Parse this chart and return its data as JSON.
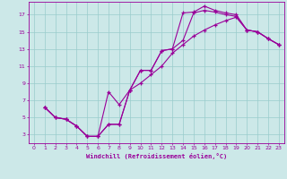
{
  "xlabel": "Windchill (Refroidissement éolien,°C)",
  "bg_color": "#cce8e8",
  "line_color": "#990099",
  "grid_color": "#99cccc",
  "xlim": [
    -0.5,
    23.5
  ],
  "ylim": [
    2.0,
    18.5
  ],
  "xticks": [
    0,
    1,
    2,
    3,
    4,
    5,
    6,
    7,
    8,
    9,
    10,
    11,
    12,
    13,
    14,
    15,
    16,
    17,
    18,
    19,
    20,
    21,
    22,
    23
  ],
  "yticks": [
    3,
    5,
    7,
    9,
    11,
    13,
    15,
    17
  ],
  "line1_x": [
    1,
    2,
    3,
    4,
    5,
    6,
    7,
    8,
    9,
    10,
    11,
    12,
    13,
    14,
    15,
    16,
    17,
    18,
    19,
    20,
    21,
    22,
    23
  ],
  "line1_y": [
    6.2,
    5.0,
    4.8,
    4.0,
    2.8,
    2.8,
    8.0,
    6.5,
    8.2,
    10.5,
    10.5,
    12.8,
    13.0,
    17.2,
    17.3,
    18.0,
    17.5,
    17.2,
    17.0,
    15.2,
    15.0,
    14.2,
    13.5
  ],
  "line2_x": [
    1,
    2,
    3,
    4,
    5,
    6,
    7,
    8,
    9,
    10,
    11,
    12,
    13,
    14,
    15,
    16,
    17,
    18,
    19,
    20,
    21,
    22,
    23
  ],
  "line2_y": [
    6.2,
    5.0,
    4.8,
    4.0,
    2.8,
    2.8,
    4.2,
    4.2,
    8.2,
    10.5,
    10.5,
    12.8,
    13.0,
    14.0,
    17.2,
    17.5,
    17.3,
    17.0,
    16.8,
    15.2,
    15.0,
    14.2,
    13.5
  ],
  "line3_x": [
    1,
    2,
    3,
    4,
    5,
    6,
    7,
    8,
    9,
    10,
    11,
    12,
    13,
    14,
    15,
    16,
    17,
    18,
    19,
    20,
    21,
    22,
    23
  ],
  "line3_y": [
    6.2,
    5.0,
    4.8,
    4.0,
    2.8,
    2.8,
    4.2,
    4.2,
    8.2,
    9.0,
    10.0,
    11.0,
    12.5,
    13.5,
    14.5,
    15.2,
    15.8,
    16.3,
    16.7,
    15.2,
    15.0,
    14.2,
    13.5
  ]
}
